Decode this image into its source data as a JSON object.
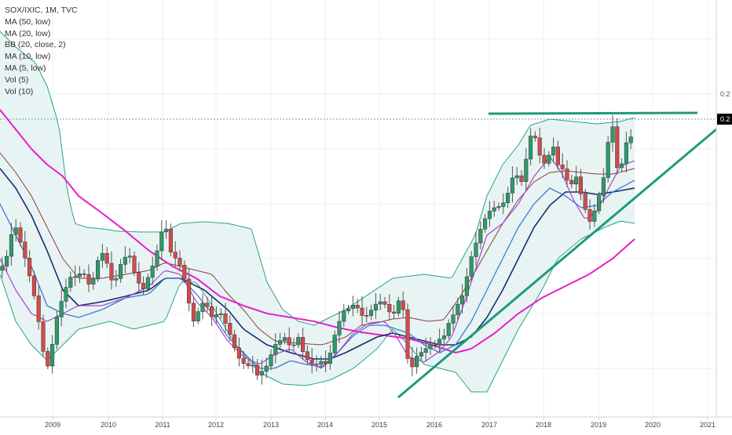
{
  "legend": {
    "symbol": "SOX/IXIC, 1M, TVC",
    "studies": [
      "MA (50, low)",
      "MA (20, low)",
      "BB (20, close, 2)",
      "MA (10, low)",
      "MA (5, low)",
      "Vol (5)",
      "Vol (10)"
    ]
  },
  "price_axis": {
    "labels": [
      "0.2",
      "0.2"
    ],
    "current_badge_color": "#5a6a6a"
  },
  "colors": {
    "up": "#2e9a6c",
    "down": "#d44a4a",
    "bb_band": "#2aa289",
    "bb_fill": "#e8f4f3",
    "ma50": "#e81ccf",
    "ma20": "#1a2d6b",
    "bb_mid": "#8b3a3a",
    "ma10": "#3b7bd6",
    "ma5": "#a845c9",
    "trend": "#1e9a7c",
    "current_line": "#3d8a80"
  },
  "chart_data": {
    "type": "candlestick",
    "title": "SOX/IXIC, 1M, TVC",
    "x_ticks": [
      "2009",
      "2010",
      "2011",
      "2012",
      "2013",
      "2014",
      "2015",
      "2016",
      "2017",
      "2018",
      "2019",
      "2020",
      "2021"
    ],
    "y_tick_labels": [
      "0.2",
      "0.2"
    ],
    "series": [
      {
        "name": "MA (50, low)"
      },
      {
        "name": "MA (20, low)"
      },
      {
        "name": "BB (20, close, 2)"
      },
      {
        "name": "MA (10, low)"
      },
      {
        "name": "MA (5, low)"
      }
    ],
    "annotations": [
      "horizontal resistance line",
      "rising support trendline",
      "last-price line"
    ],
    "grid": true
  }
}
